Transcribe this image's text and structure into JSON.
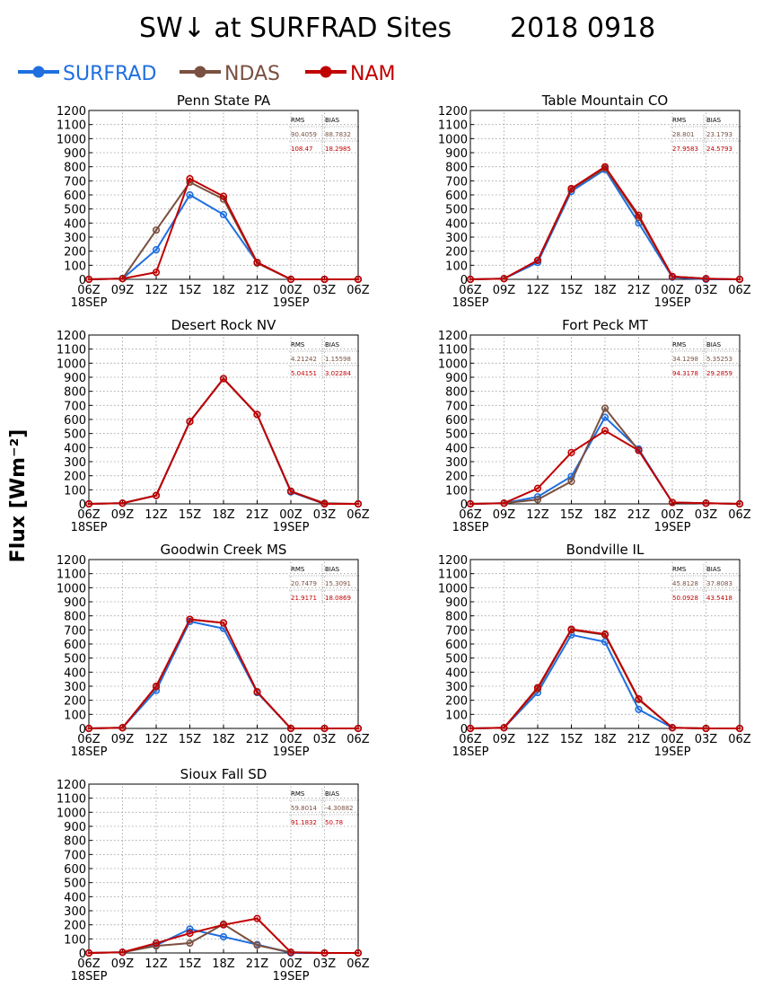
{
  "figure": {
    "title": "SW↓ at SURFRAD Sites",
    "date": "2018 0918",
    "ylabel": "Flux [Wm⁻²]",
    "x_ticks": [
      "06Z",
      "09Z",
      "12Z",
      "15Z",
      "18Z",
      "21Z",
      "00Z",
      "03Z",
      "06Z"
    ],
    "x_sublabels": [
      {
        "at": 0,
        "text": "18SEP"
      },
      {
        "at": 6,
        "text": "19SEP"
      }
    ],
    "y_ticks": [
      0,
      100,
      200,
      300,
      400,
      500,
      600,
      700,
      800,
      900,
      1000,
      1100,
      1200
    ],
    "stats_headers": [
      "RMS",
      "BIAS"
    ],
    "legend": [
      {
        "name": "SURFRAD",
        "color": "#1f6fe0"
      },
      {
        "name": "NDAS",
        "color": "#7a5040"
      },
      {
        "name": "NAM",
        "color": "#c00000"
      }
    ]
  },
  "chart_data": [
    {
      "type": "line",
      "title": "Penn State PA",
      "x": [
        "06Z",
        "09Z",
        "12Z",
        "15Z",
        "18Z",
        "21Z",
        "00Z",
        "03Z",
        "06Z"
      ],
      "ylim": [
        0,
        1200
      ],
      "grid": true,
      "series": [
        {
          "name": "SURFRAD",
          "values": [
            0,
            5,
            210,
            600,
            460,
            120,
            0,
            0,
            0
          ]
        },
        {
          "name": "NDAS",
          "values": [
            0,
            5,
            350,
            690,
            570,
            115,
            0,
            0,
            0
          ]
        },
        {
          "name": "NAM",
          "values": [
            0,
            5,
            50,
            715,
            590,
            120,
            0,
            0,
            0
          ]
        }
      ],
      "stats": {
        "ndas": [
          "90.4059",
          "88.7832"
        ],
        "nam": [
          "108.47",
          "18.2985"
        ]
      }
    },
    {
      "type": "line",
      "title": "Table Mountain CO",
      "x": [
        "06Z",
        "09Z",
        "12Z",
        "15Z",
        "18Z",
        "21Z",
        "00Z",
        "03Z",
        "06Z"
      ],
      "ylim": [
        0,
        1200
      ],
      "grid": true,
      "series": [
        {
          "name": "SURFRAD",
          "values": [
            0,
            5,
            120,
            625,
            780,
            400,
            15,
            0,
            0
          ]
        },
        {
          "name": "NDAS",
          "values": [
            0,
            5,
            135,
            640,
            790,
            440,
            20,
            5,
            0
          ]
        },
        {
          "name": "NAM",
          "values": [
            0,
            5,
            135,
            645,
            800,
            455,
            20,
            5,
            0
          ]
        }
      ],
      "stats": {
        "ndas": [
          "28.801",
          "23.1793"
        ],
        "nam": [
          "27.9583",
          "24.5793"
        ]
      }
    },
    {
      "type": "line",
      "title": "Desert Rock NV",
      "x": [
        "06Z",
        "09Z",
        "12Z",
        "15Z",
        "18Z",
        "21Z",
        "00Z",
        "03Z",
        "06Z"
      ],
      "ylim": [
        0,
        1200
      ],
      "grid": true,
      "series": [
        {
          "name": "SURFRAD",
          "values": [
            0,
            5,
            60,
            585,
            890,
            635,
            85,
            0,
            0
          ]
        },
        {
          "name": "NDAS",
          "values": [
            0,
            5,
            60,
            585,
            890,
            635,
            90,
            5,
            0
          ]
        },
        {
          "name": "NAM",
          "values": [
            0,
            5,
            60,
            585,
            890,
            635,
            90,
            0,
            0
          ]
        }
      ],
      "stats": {
        "ndas": [
          "4.21242",
          "1.15598"
        ],
        "nam": [
          "5.04151",
          "3.02284"
        ]
      }
    },
    {
      "type": "line",
      "title": "Fort Peck MT",
      "x": [
        "06Z",
        "09Z",
        "12Z",
        "15Z",
        "18Z",
        "21Z",
        "00Z",
        "03Z",
        "06Z"
      ],
      "ylim": [
        0,
        1200
      ],
      "grid": true,
      "series": [
        {
          "name": "SURFRAD",
          "values": [
            0,
            5,
            50,
            195,
            615,
            390,
            10,
            5,
            0
          ]
        },
        {
          "name": "NDAS",
          "values": [
            0,
            5,
            30,
            160,
            680,
            380,
            10,
            5,
            0
          ]
        },
        {
          "name": "NAM",
          "values": [
            0,
            5,
            110,
            365,
            520,
            380,
            10,
            5,
            0
          ]
        }
      ],
      "stats": {
        "ndas": [
          "34.1298",
          "5.35253"
        ],
        "nam": [
          "94.3178",
          "29.2859"
        ]
      }
    },
    {
      "type": "line",
      "title": "Goodwin Creek MS",
      "x": [
        "06Z",
        "09Z",
        "12Z",
        "15Z",
        "18Z",
        "21Z",
        "00Z",
        "03Z",
        "06Z"
      ],
      "ylim": [
        0,
        1200
      ],
      "grid": true,
      "series": [
        {
          "name": "SURFRAD",
          "values": [
            0,
            5,
            270,
            760,
            710,
            255,
            0,
            0,
            0
          ]
        },
        {
          "name": "NDAS",
          "values": [
            0,
            5,
            295,
            775,
            750,
            260,
            0,
            0,
            0
          ]
        },
        {
          "name": "NAM",
          "values": [
            0,
            5,
            300,
            775,
            750,
            260,
            0,
            0,
            0
          ]
        }
      ],
      "stats": {
        "ndas": [
          "20.7479",
          "15.3091"
        ],
        "nam": [
          "21.9171",
          "18.0869"
        ]
      }
    },
    {
      "type": "line",
      "title": "Bondville IL",
      "x": [
        "06Z",
        "09Z",
        "12Z",
        "15Z",
        "18Z",
        "21Z",
        "00Z",
        "03Z",
        "06Z"
      ],
      "ylim": [
        0,
        1200
      ],
      "grid": true,
      "series": [
        {
          "name": "SURFRAD",
          "values": [
            0,
            5,
            255,
            665,
            615,
            135,
            5,
            0,
            0
          ]
        },
        {
          "name": "NDAS",
          "values": [
            0,
            5,
            280,
            700,
            665,
            205,
            5,
            0,
            0
          ]
        },
        {
          "name": "NAM",
          "values": [
            0,
            5,
            290,
            705,
            670,
            210,
            5,
            0,
            0
          ]
        }
      ],
      "stats": {
        "ndas": [
          "45.8128",
          "37.8083"
        ],
        "nam": [
          "50.0928",
          "43.5418"
        ]
      }
    },
    {
      "type": "line",
      "title": "Sioux Fall SD",
      "x": [
        "06Z",
        "09Z",
        "12Z",
        "15Z",
        "18Z",
        "21Z",
        "00Z",
        "03Z",
        "06Z"
      ],
      "ylim": [
        0,
        1200
      ],
      "grid": true,
      "series": [
        {
          "name": "SURFRAD",
          "values": [
            0,
            5,
            55,
            170,
            115,
            60,
            0,
            0,
            0
          ]
        },
        {
          "name": "NDAS",
          "values": [
            0,
            5,
            50,
            70,
            205,
            55,
            5,
            0,
            0
          ]
        },
        {
          "name": "NAM",
          "values": [
            0,
            5,
            70,
            140,
            200,
            245,
            5,
            0,
            0
          ]
        }
      ],
      "stats": {
        "ndas": [
          "59.8014",
          "-4.30882"
        ],
        "nam": [
          "91.1832",
          "50.78"
        ]
      }
    }
  ]
}
